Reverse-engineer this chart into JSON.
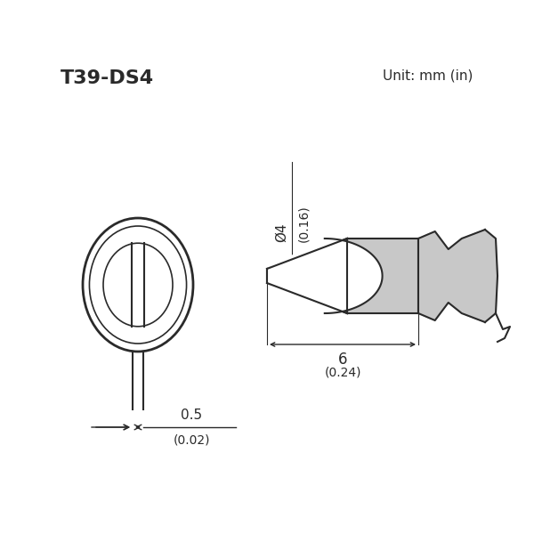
{
  "title": "T39-DS4",
  "unit_text": "Unit: mm (in)",
  "bg_color": "#ffffff",
  "line_color": "#2a2a2a",
  "fill_color": "#c8c8c8",
  "fill_dark": "#a0a0a0"
}
